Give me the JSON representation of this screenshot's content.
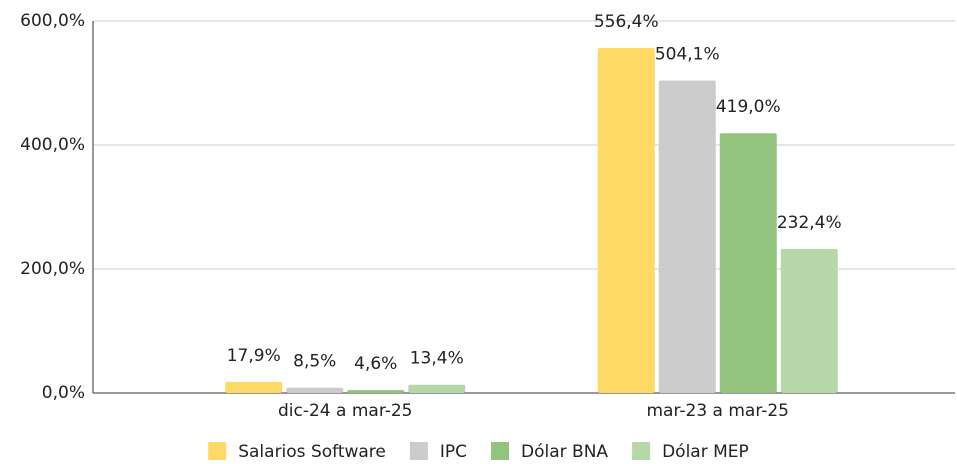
{
  "chart_data": {
    "type": "bar",
    "categories": [
      "dic-24 a mar-25",
      "mar-23 a mar-25"
    ],
    "series": [
      {
        "name": "Salarios Software",
        "color": "#ffd966",
        "values": [
          17.9,
          556.4
        ],
        "value_labels": [
          "17,9%",
          "556,4%"
        ]
      },
      {
        "name": "IPC",
        "color": "#cccccc",
        "values": [
          8.5,
          504.1
        ],
        "value_labels": [
          "8,5%",
          "504,1%"
        ]
      },
      {
        "name": "Dólar BNA",
        "color": "#93c47d",
        "values": [
          4.6,
          419.0
        ],
        "value_labels": [
          "4,6%",
          "419,0%"
        ]
      },
      {
        "name": "Dólar MEP",
        "color": "#b6d7a8",
        "values": [
          13.4,
          232.4
        ],
        "value_labels": [
          "13,4%",
          "232,4%"
        ]
      }
    ],
    "ylim": [
      0,
      600
    ],
    "yticks": [
      {
        "value": 0,
        "label": "0,0%"
      },
      {
        "value": 200,
        "label": "200,0%"
      },
      {
        "value": 400,
        "label": "400,0%"
      },
      {
        "value": 600,
        "label": "600,0%"
      }
    ],
    "grid": true,
    "legend": "bottom"
  }
}
